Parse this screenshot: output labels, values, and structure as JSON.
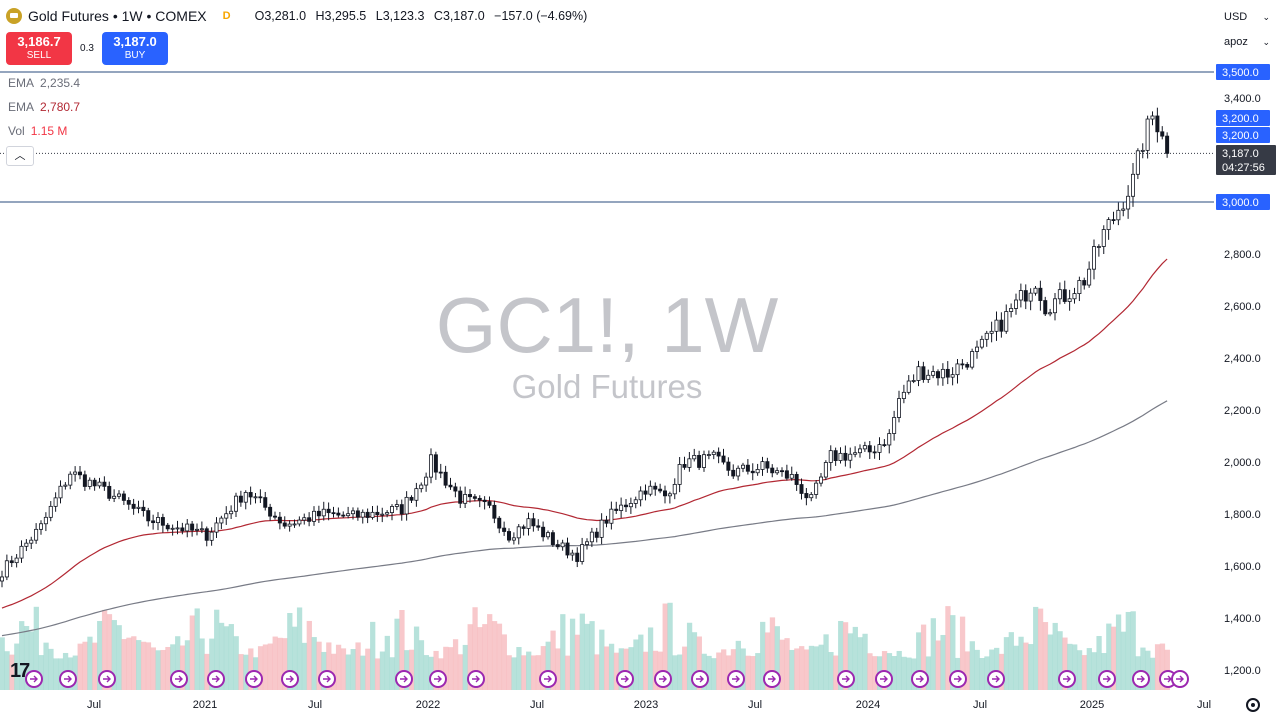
{
  "header": {
    "title": "Gold Futures • 1W • COMEX",
    "badge": "D",
    "ohlc": {
      "o_label": "O",
      "o": "3,281.0",
      "h_label": "H",
      "h": "3,295.5",
      "l_label": "L",
      "l": "3,123.3",
      "c_label": "C",
      "c": "3,187.0",
      "change": "−157.0 (−4.69%)"
    }
  },
  "trade": {
    "sell_price": "3,186.7",
    "sell_label": "SELL",
    "spread": "0.3",
    "buy_price": "3,187.0",
    "buy_label": "BUY"
  },
  "indicators": [
    {
      "name": "EMA",
      "value": "2,235.4"
    },
    {
      "name": "EMA",
      "value": "2,780.7"
    },
    {
      "name": "Vol",
      "value": "1.15 M"
    }
  ],
  "currency_select": "USD",
  "scale_select": "apoz",
  "watermark": {
    "symbol": "GC1!, 1W",
    "name": "Gold Futures"
  },
  "colors": {
    "up": "#089981",
    "down": "#f23645",
    "ema_fast": "#b22833",
    "ema_slow": "#787b86",
    "vol_up": "#9fd8cf",
    "vol_down": "#f5b5b9",
    "hline": "#2a4b7c",
    "price_badge": "#2962ff",
    "last_badge": "#363a45"
  },
  "chart_data": {
    "type": "candlestick",
    "x_ticks": [
      "Jul",
      "2021",
      "Jul",
      "2022",
      "Jul",
      "2023",
      "Jul",
      "2024",
      "Jul",
      "2025",
      "Jul"
    ],
    "y_ticks": [
      "1,200.0",
      "1,400.0",
      "1,600.0",
      "1,800.0",
      "2,000.0",
      "2,200.0",
      "2,400.0",
      "2,600.0",
      "2,800.0",
      "3,000.0",
      "3,200.0",
      "3,400.0"
    ],
    "ylim": [
      1130,
      3620
    ],
    "horizontal_lines": [
      {
        "value": 3500,
        "label": "3,500.0"
      },
      {
        "value": 3000,
        "label": "3,000.0"
      }
    ],
    "price_labels": [
      {
        "value": 3200,
        "label": "3,200.0"
      },
      {
        "value": 3200,
        "label": "3,200.0"
      }
    ],
    "last_price": {
      "value": 3187.0,
      "label": "3,187.0",
      "countdown": "04:27:56"
    },
    "anchors": [
      {
        "week": 0,
        "close": 1580
      },
      {
        "week": 8,
        "close": 1750
      },
      {
        "week": 14,
        "close": 1960
      },
      {
        "week": 22,
        "close": 1880
      },
      {
        "week": 30,
        "close": 1780
      },
      {
        "week": 42,
        "close": 1720
      },
      {
        "week": 50,
        "close": 1890
      },
      {
        "week": 58,
        "close": 1760
      },
      {
        "week": 66,
        "close": 1800
      },
      {
        "week": 72,
        "close": 1790
      },
      {
        "week": 82,
        "close": 1820
      },
      {
        "week": 86,
        "close": 1930
      },
      {
        "week": 88,
        "close": 2000
      },
      {
        "week": 94,
        "close": 1860
      },
      {
        "week": 100,
        "close": 1820
      },
      {
        "week": 104,
        "close": 1720
      },
      {
        "week": 108,
        "close": 1770
      },
      {
        "week": 114,
        "close": 1680
      },
      {
        "week": 118,
        "close": 1640
      },
      {
        "week": 124,
        "close": 1780
      },
      {
        "week": 132,
        "close": 1900
      },
      {
        "week": 136,
        "close": 1870
      },
      {
        "week": 140,
        "close": 2000
      },
      {
        "week": 146,
        "close": 2010
      },
      {
        "week": 150,
        "close": 1960
      },
      {
        "week": 156,
        "close": 1980
      },
      {
        "week": 162,
        "close": 1940
      },
      {
        "week": 166,
        "close": 1850
      },
      {
        "week": 170,
        "close": 2020
      },
      {
        "week": 178,
        "close": 2040
      },
      {
        "week": 182,
        "close": 2100
      },
      {
        "week": 184,
        "close": 2240
      },
      {
        "week": 188,
        "close": 2350
      },
      {
        "week": 194,
        "close": 2340
      },
      {
        "week": 200,
        "close": 2420
      },
      {
        "week": 206,
        "close": 2560
      },
      {
        "week": 212,
        "close": 2700
      },
      {
        "week": 214,
        "close": 2600
      },
      {
        "week": 218,
        "close": 2640
      },
      {
        "week": 222,
        "close": 2700
      },
      {
        "week": 226,
        "close": 2880
      },
      {
        "week": 228,
        "close": 2940
      },
      {
        "week": 232,
        "close": 3080
      },
      {
        "week": 234,
        "close": 3230
      },
      {
        "week": 236,
        "close": 3330
      },
      {
        "week": 238,
        "close": 3280
      },
      {
        "week": 239,
        "close": 3187
      }
    ],
    "ema_fast_end": 2780.7,
    "ema_slow_end": 2235.4,
    "volume_last": "1.15 M"
  }
}
